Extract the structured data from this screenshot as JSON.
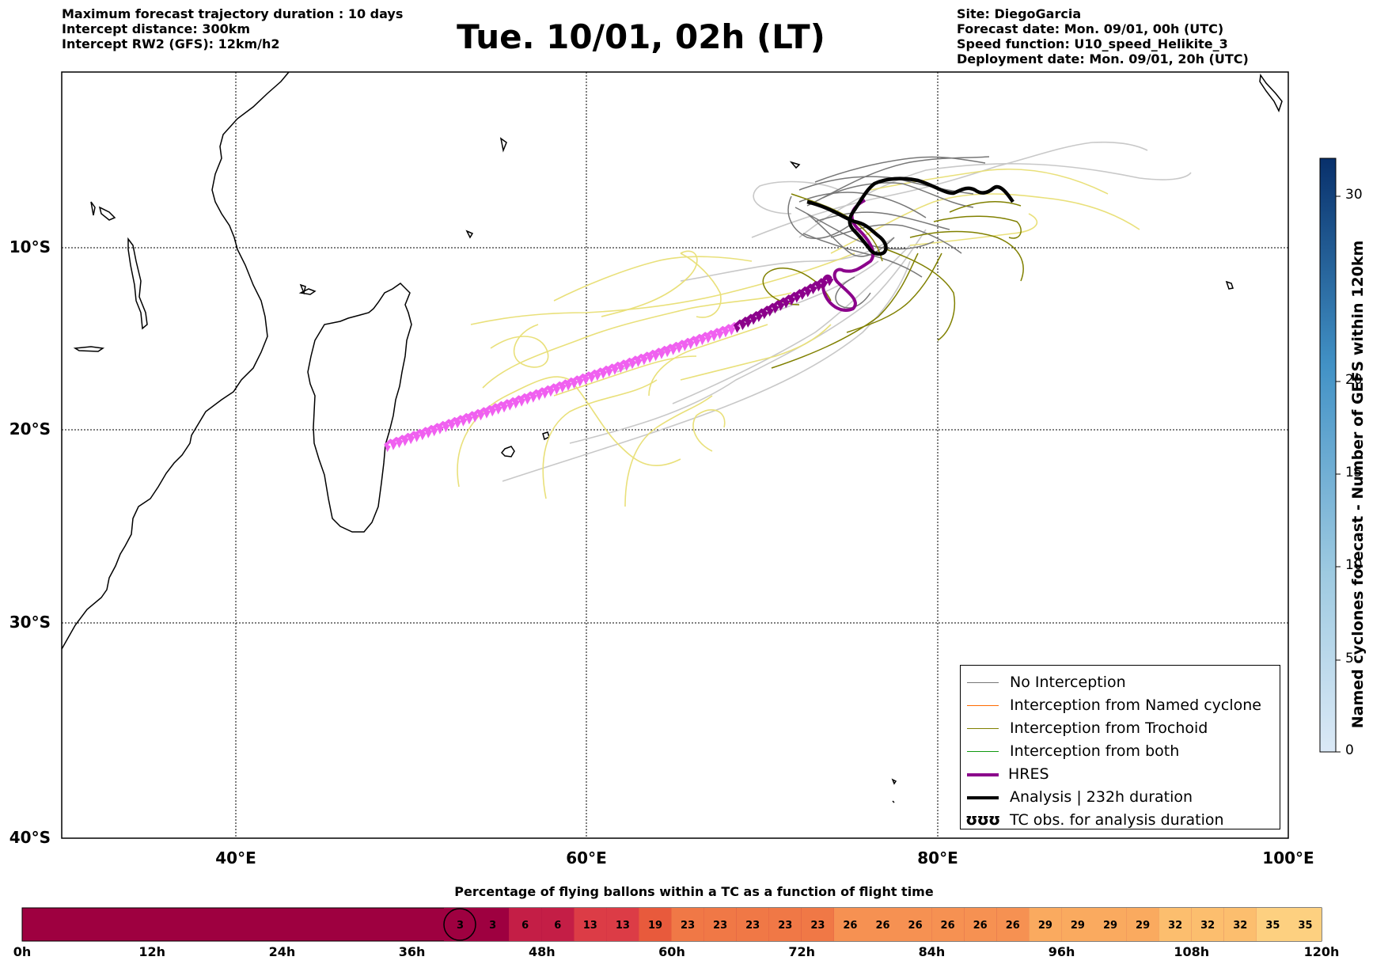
{
  "header": {
    "left_lines": [
      "Maximum forecast trajectory duration : 10 days",
      "Intercept distance: 300km",
      "Intercept RW2 (GFS):  12km/h2"
    ],
    "right_lines": [
      "Site: DiegoGarcia",
      "Forecast date: Mon. 09/01, 00h (UTC)",
      "Speed function: U10_speed_Helikite_3",
      "Deployment date: Mon. 09/01, 20h (UTC)"
    ],
    "title": "Tue. 10/01, 02h (LT)"
  },
  "map": {
    "lon_labels": [
      "40°E",
      "60°E",
      "80°E",
      "100°E"
    ],
    "lat_labels": [
      "10°S",
      "20°S",
      "30°S",
      "40°S"
    ],
    "colors": {
      "no_interception": "#777777",
      "named_cyclone": "#ff6a00",
      "trochoid": "#808000",
      "both": "#119911",
      "hres": "#8b008b",
      "hres_highlight": "#f060f0",
      "analysis": "#000000",
      "yellow_members": "#e9e07a",
      "light_members": "#c8c8c8"
    }
  },
  "legend": {
    "items": [
      {
        "label": "No Interception",
        "kind": "line",
        "color": "#777777"
      },
      {
        "label": "Interception from Named cyclone",
        "kind": "line",
        "color": "#ff6a00"
      },
      {
        "label": "Interception from Trochoid",
        "kind": "line",
        "color": "#808000"
      },
      {
        "label": "Interception from both",
        "kind": "line",
        "color": "#119911"
      },
      {
        "label": "HRES",
        "kind": "thick",
        "color": "#8b008b"
      },
      {
        "label": "Analysis | 232h duration",
        "kind": "thick",
        "color": "#000000"
      },
      {
        "label": "TC obs. for analysis duration",
        "kind": "symbol",
        "symbol": "ʊʊʊ"
      }
    ]
  },
  "colorbar": {
    "label": "Named cyclones forecast - Number of GEFS within 120km",
    "ticks": [
      "0",
      "5",
      "10",
      "15",
      "20",
      "30"
    ],
    "color_low": "#dbe9f6",
    "color_high": "#08306b"
  },
  "timeline": {
    "title": "Percentage of flying ballons within a TC as a function of flight time",
    "tick_labels": [
      "0h",
      "12h",
      "24h",
      "36h",
      "48h",
      "60h",
      "72h",
      "84h",
      "96h",
      "108h",
      "120h"
    ],
    "cell_values": [
      3,
      3,
      6,
      6,
      13,
      13,
      19,
      23,
      23,
      23,
      23,
      23,
      26,
      26,
      26,
      26,
      26,
      26,
      29,
      29,
      29,
      29,
      32,
      32,
      32,
      35,
      35
    ],
    "current_cell_index": 0,
    "dark_color": "#9e0040"
  }
}
